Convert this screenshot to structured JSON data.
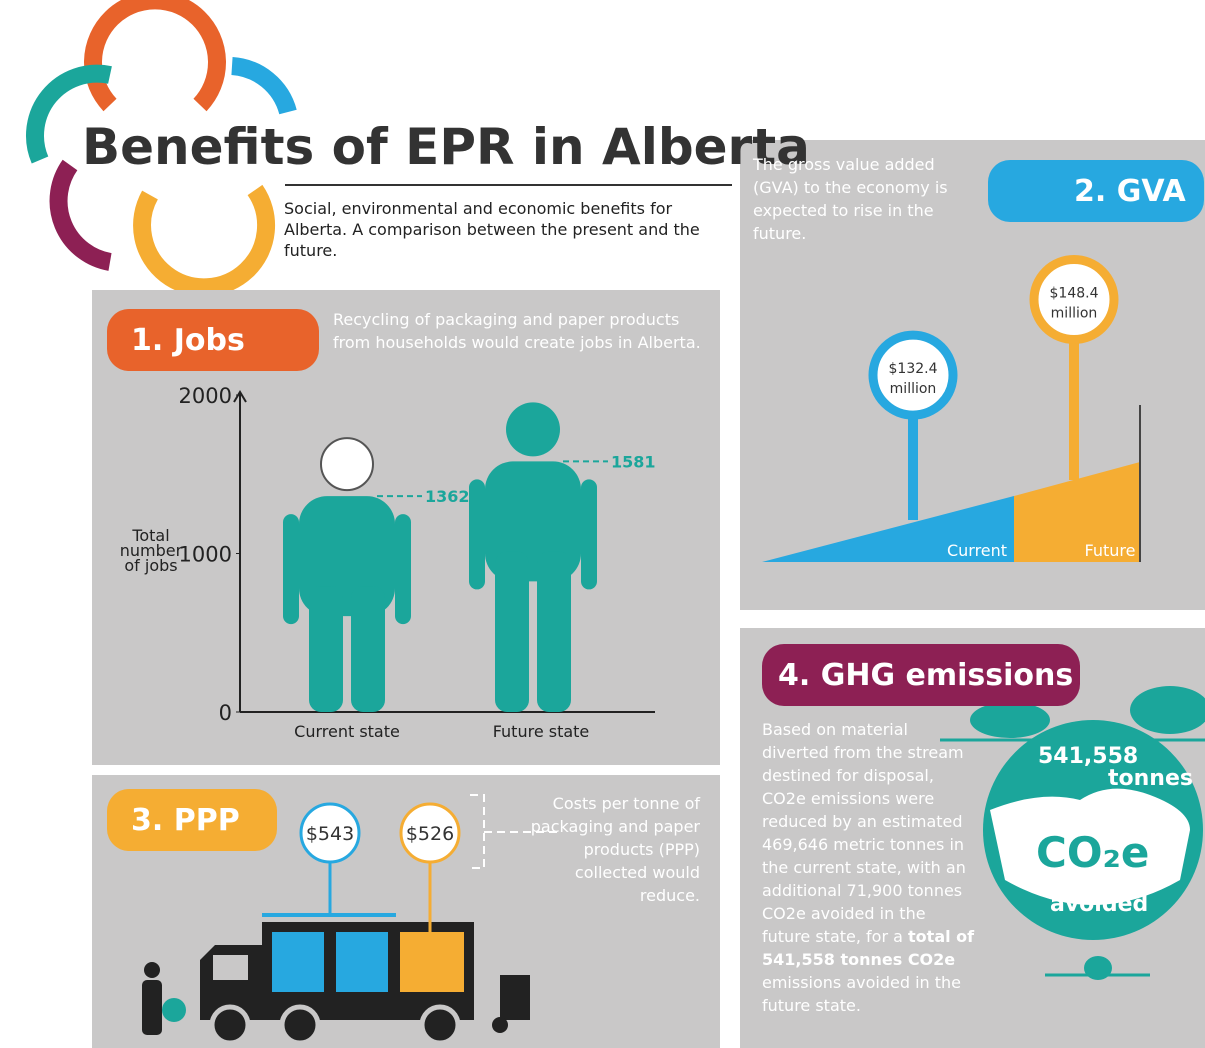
{
  "header": {
    "title": "Benefits of EPR in Alberta",
    "subtitle": "Social, environmental and economic benefits for Alberta. A comparison between the present and the future."
  },
  "jobs": {
    "heading": "1. Jobs",
    "description": "Recycling of packaging and paper products from households would create jobs in Alberta.",
    "chart_data": {
      "type": "people",
      "y_label": "Total number of jobs",
      "categories": [
        "Current state",
        "Future state"
      ],
      "values": [
        1362,
        1581
      ],
      "ylim": [
        0,
        2000
      ],
      "yticks": [
        0,
        1000,
        2000
      ]
    }
  },
  "gva": {
    "heading": "2. GVA",
    "description": "The gross value added (GVA) to the economy is expected to rise in the future.",
    "chart_data": {
      "type": "lollipop",
      "categories": [
        "Current",
        "Future"
      ],
      "values": [
        132.4,
        148.4
      ],
      "value_labels": [
        "$132.4 million",
        "$148.4 million"
      ]
    }
  },
  "ppp": {
    "heading": "3. PPP",
    "description": "Costs per tonne of packaging and paper products (PPP) collected would reduce.",
    "values": [
      543,
      526
    ],
    "value_labels": [
      "$543",
      "$526"
    ]
  },
  "ghg": {
    "heading": "4. GHG emissions",
    "description": [
      "Based on material diverted from the stream destined for disposal, CO2e emissions were reduced by an estimated 469,646 metric tonnes in the current state, with an additional 71,900 tonnes CO2e avoided in the future state, for a ",
      "total of 541,558 tonnes CO2e",
      " emissions avoided in the future state."
    ],
    "badge": {
      "amount": "541,558",
      "unit": "tonnes",
      "gas": "CO₂e",
      "note": "avoided"
    }
  }
}
